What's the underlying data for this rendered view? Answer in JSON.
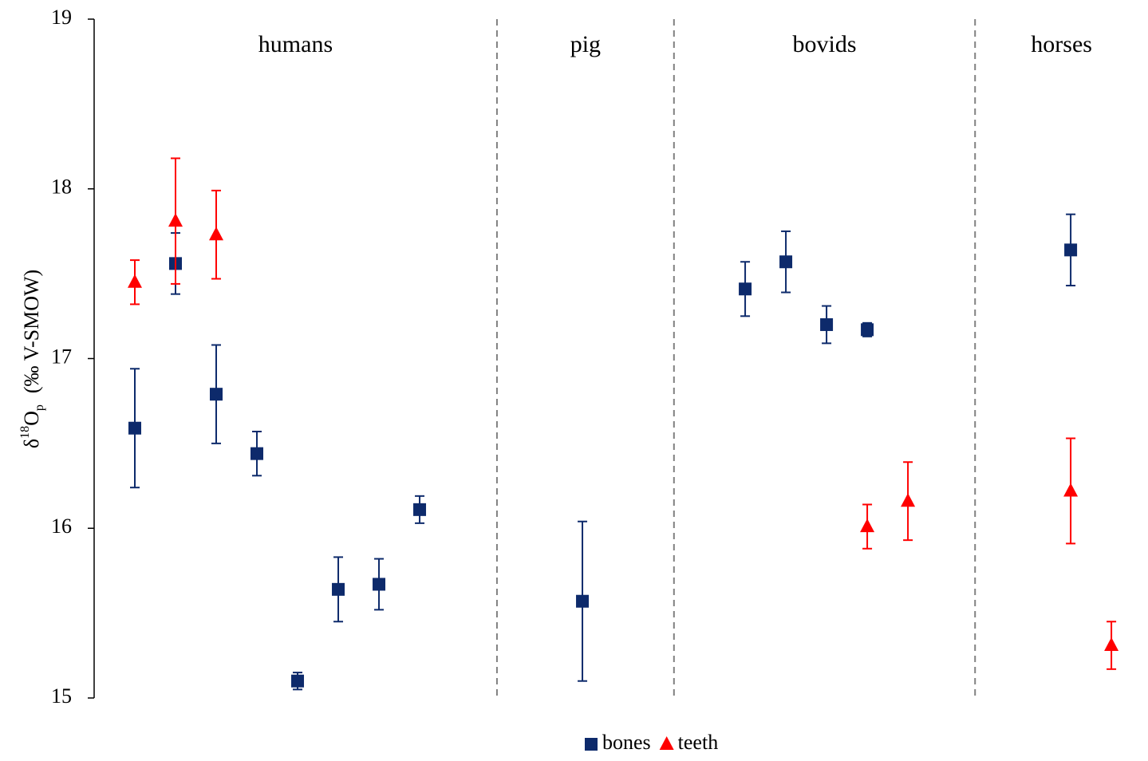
{
  "chart_data": {
    "type": "scatter",
    "ylabel": {
      "base": "δ",
      "sup": "18",
      "main": "O",
      "sub": "p",
      "unit": "(‰ V-SMOW)"
    },
    "xlim": [
      0,
      25.9
    ],
    "ylim": [
      15,
      19
    ],
    "yticks": [
      15,
      16,
      17,
      18,
      19
    ],
    "separators": [
      9.9,
      14.25,
      21.65
    ],
    "groups": [
      "humans",
      "pig",
      "bovids",
      "horses"
    ],
    "series": [
      {
        "name": "bones",
        "color": "#0d2a6b",
        "marker": "square",
        "x": [
          1,
          2,
          3,
          4,
          5,
          6,
          7,
          8,
          12,
          16,
          17,
          18,
          19,
          24
        ],
        "values": [
          16.59,
          17.56,
          16.79,
          16.44,
          15.1,
          15.64,
          15.67,
          16.11,
          15.57,
          17.41,
          17.57,
          17.2,
          17.17,
          17.64
        ],
        "errors": [
          0.35,
          0.18,
          0.29,
          0.13,
          0.05,
          0.19,
          0.15,
          0.08,
          0.47,
          0.16,
          0.18,
          0.11,
          0.04,
          0.21
        ]
      },
      {
        "name": "teeth",
        "color": "#ff0000",
        "marker": "triangle",
        "x": [
          1,
          2,
          3,
          19,
          20,
          24,
          25
        ],
        "values": [
          17.45,
          17.81,
          17.73,
          16.01,
          16.16,
          16.22,
          15.31
        ],
        "errors": [
          0.13,
          0.37,
          0.26,
          0.13,
          0.23,
          0.31,
          0.14
        ]
      }
    ]
  }
}
